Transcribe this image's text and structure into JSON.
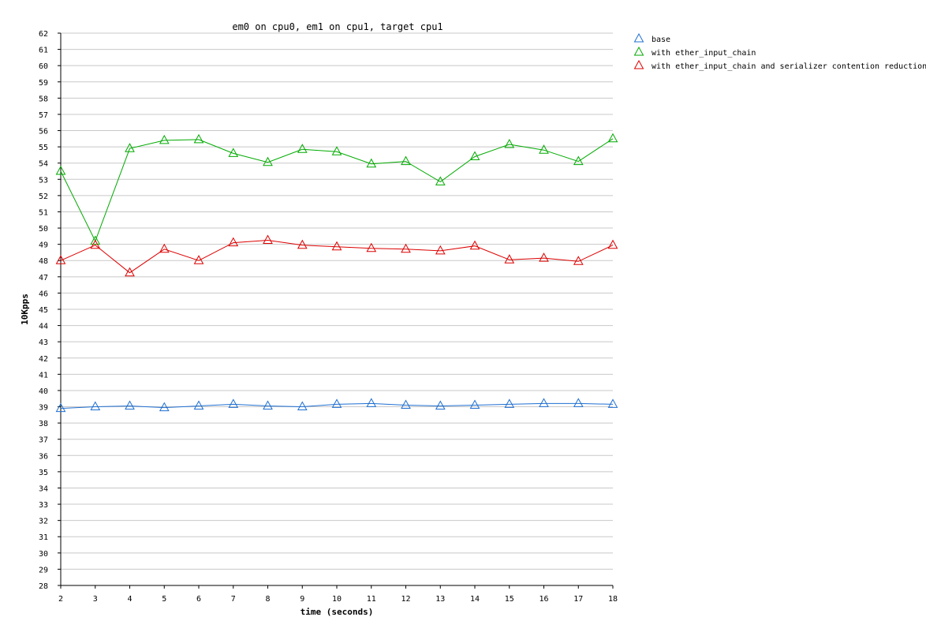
{
  "chart_data": {
    "type": "line",
    "title": "em0 on cpu0, em1 on cpu1, target cpu1",
    "xlabel": "time (seconds)",
    "ylabel": "10Kpps",
    "xlim": [
      2,
      18
    ],
    "ylim": [
      28,
      62
    ],
    "x_ticks": [
      2,
      3,
      4,
      5,
      6,
      7,
      8,
      9,
      10,
      11,
      12,
      13,
      14,
      15,
      16,
      17,
      18
    ],
    "y_ticks": [
      28,
      29,
      30,
      31,
      32,
      33,
      34,
      35,
      36,
      37,
      38,
      39,
      40,
      41,
      42,
      43,
      44,
      45,
      46,
      47,
      48,
      49,
      50,
      51,
      52,
      53,
      54,
      55,
      56,
      57,
      58,
      59,
      60,
      61,
      62
    ],
    "grid": "horizontal",
    "legend_position": "top-right",
    "marker": "triangle",
    "x": [
      2,
      3,
      4,
      5,
      6,
      7,
      8,
      9,
      10,
      11,
      12,
      13,
      14,
      15,
      16,
      17,
      18
    ],
    "series": [
      {
        "name": "base",
        "color": "#1f6fd1",
        "values": [
          38.9,
          39.0,
          39.05,
          38.95,
          39.05,
          39.15,
          39.05,
          39.0,
          39.15,
          39.2,
          39.1,
          39.05,
          39.1,
          39.15,
          39.2,
          39.2,
          39.15
        ]
      },
      {
        "name": "with ether_input_chain",
        "color": "#00aa00",
        "values": [
          53.5,
          49.2,
          54.9,
          55.4,
          55.45,
          54.6,
          54.05,
          54.85,
          54.7,
          53.95,
          54.1,
          52.85,
          54.4,
          55.15,
          54.8,
          54.1,
          55.5
        ]
      },
      {
        "name": "with ether_input_chain and serializer contention reduction",
        "color": "#dd0000",
        "values": [
          48.0,
          48.95,
          47.25,
          48.7,
          48.0,
          49.1,
          49.25,
          48.95,
          48.85,
          48.75,
          48.7,
          48.6,
          48.9,
          48.05,
          48.15,
          47.95,
          48.95
        ]
      }
    ]
  }
}
